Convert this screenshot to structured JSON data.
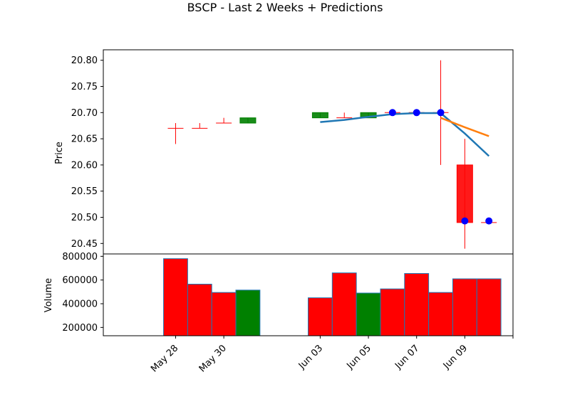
{
  "chart_data": {
    "type": "candlestick",
    "title": "BSCP - Last 2 Weeks + Predictions",
    "price_panel": {
      "ylabel": "Price",
      "ylim": [
        20.43,
        20.82
      ],
      "yticks": [
        "20.45",
        "20.50",
        "20.55",
        "20.60",
        "20.65",
        "20.70",
        "20.75",
        "20.80"
      ],
      "candles": [
        {
          "date": "2024-05-28",
          "open": 20.67,
          "close": 20.67,
          "high": 20.68,
          "low": 20.64,
          "color": "red"
        },
        {
          "date": "2024-05-29",
          "open": 20.67,
          "close": 20.67,
          "high": 20.68,
          "low": 20.67,
          "color": "red"
        },
        {
          "date": "2024-05-30",
          "open": 20.68,
          "close": 20.68,
          "high": 20.69,
          "low": 20.68,
          "color": "red"
        },
        {
          "date": "2024-05-31",
          "open": 20.68,
          "close": 20.69,
          "high": 20.69,
          "low": 20.68,
          "color": "green"
        },
        {
          "date": "2024-06-03",
          "open": 20.69,
          "close": 20.7,
          "high": 20.7,
          "low": 20.69,
          "color": "green"
        },
        {
          "date": "2024-06-04",
          "open": 20.69,
          "close": 20.69,
          "high": 20.7,
          "low": 20.69,
          "color": "red"
        },
        {
          "date": "2024-06-05",
          "open": 20.69,
          "close": 20.7,
          "high": 20.7,
          "low": 20.69,
          "color": "green"
        },
        {
          "date": "2024-06-06",
          "open": 20.7,
          "close": 20.7,
          "high": 20.7,
          "low": 20.7,
          "color": "red"
        },
        {
          "date": "2024-06-07",
          "open": 20.7,
          "close": 20.7,
          "high": 20.7,
          "low": 20.7,
          "color": "red"
        },
        {
          "date": "2024-06-08",
          "open": 20.7,
          "close": 20.7,
          "high": 20.8,
          "low": 20.6,
          "color": "red"
        },
        {
          "date": "2024-06-09",
          "open": 20.6,
          "close": 20.49,
          "high": 20.65,
          "low": 20.44,
          "color": "red"
        },
        {
          "date": "2024-06-10",
          "open": 20.49,
          "close": 20.49,
          "high": 20.49,
          "low": 20.49,
          "color": "red"
        }
      ],
      "markers": [
        {
          "date": "2024-06-06",
          "value": 20.7
        },
        {
          "date": "2024-06-07",
          "value": 20.7
        },
        {
          "date": "2024-06-08",
          "value": 20.7
        },
        {
          "date": "2024-06-09",
          "value": 20.493
        },
        {
          "date": "2024-06-10",
          "value": 20.493
        }
      ],
      "lines": [
        {
          "color": "#1f77b4",
          "points": [
            [
              "2024-06-03",
              20.682
            ],
            [
              "2024-06-04",
              20.686
            ],
            [
              "2024-06-05",
              20.692
            ],
            [
              "2024-06-06",
              20.697
            ],
            [
              "2024-06-07",
              20.699
            ],
            [
              "2024-06-08",
              20.699
            ],
            [
              "2024-06-09",
              20.66
            ],
            [
              "2024-06-10",
              20.617
            ]
          ]
        },
        {
          "color": "#ff7f0e",
          "points": [
            [
              "2024-06-08",
              20.69
            ],
            [
              "2024-06-09",
              20.672
            ],
            [
              "2024-06-10",
              20.655
            ]
          ]
        }
      ]
    },
    "volume_panel": {
      "ylabel": "Volume",
      "ylim": [
        130000,
        820000
      ],
      "yticks": [
        "200000",
        "400000",
        "600000",
        "800000"
      ],
      "bars": [
        {
          "date": "2024-05-28",
          "value": 780000,
          "color": "red"
        },
        {
          "date": "2024-05-29",
          "value": 565000,
          "color": "red"
        },
        {
          "date": "2024-05-30",
          "value": 495000,
          "color": "red"
        },
        {
          "date": "2024-05-31",
          "value": 515000,
          "color": "green"
        },
        {
          "date": "2024-06-03",
          "value": 450000,
          "color": "red"
        },
        {
          "date": "2024-06-04",
          "value": 660000,
          "color": "red"
        },
        {
          "date": "2024-06-05",
          "value": 490000,
          "color": "green"
        },
        {
          "date": "2024-06-06",
          "value": 525000,
          "color": "red"
        },
        {
          "date": "2024-06-07",
          "value": 655000,
          "color": "red"
        },
        {
          "date": "2024-06-08",
          "value": 495000,
          "color": "red"
        },
        {
          "date": "2024-06-09",
          "value": 610000,
          "color": "red"
        },
        {
          "date": "2024-06-10",
          "value": 610000,
          "color": "red"
        }
      ]
    },
    "x_axis": {
      "range": [
        "2024-05-25",
        "2024-06-11"
      ],
      "ticks": [
        {
          "date": "2024-05-28",
          "label": "May 28"
        },
        {
          "date": "2024-05-30",
          "label": "May 30"
        },
        {
          "date": "2024-06-03",
          "label": "Jun 03"
        },
        {
          "date": "2024-06-05",
          "label": "Jun 05"
        },
        {
          "date": "2024-06-07",
          "label": "Jun 07"
        },
        {
          "date": "2024-06-09",
          "label": "Jun 09"
        },
        {
          "date": "2024-06-11",
          "label": ""
        }
      ]
    },
    "colors": {
      "up": "#008000",
      "down": "#ff0000",
      "marker": "#0000ff"
    }
  }
}
